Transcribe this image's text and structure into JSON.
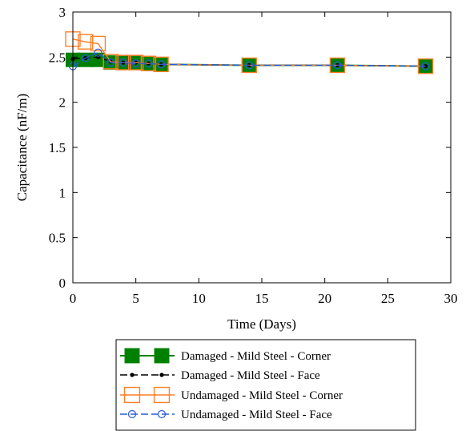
{
  "chart_data": {
    "type": "line",
    "xlabel": "Time (Days)",
    "ylabel": "Capacitance (nF/m)",
    "xlim": [
      0,
      30
    ],
    "ylim": [
      0,
      3
    ],
    "xticks": [
      "0",
      "5",
      "10",
      "15",
      "20",
      "25",
      "30"
    ],
    "yticks": [
      "0",
      "0.5",
      "1",
      "1.5",
      "2",
      "2.5",
      "3"
    ],
    "grid": false,
    "legend_position": "bottom",
    "series": [
      {
        "name": "Damaged - Mild Steel - Corner",
        "color": "#008000",
        "marker": "filled-square",
        "x": [
          0,
          1,
          2,
          3,
          4,
          5,
          6,
          7,
          14,
          21,
          28
        ],
        "y": [
          2.47,
          2.47,
          2.47,
          2.44,
          2.44,
          2.44,
          2.43,
          2.42,
          2.41,
          2.41,
          2.4
        ]
      },
      {
        "name": "Damaged - Mild Steel - Face",
        "color": "#000000",
        "marker": "dot",
        "x": [
          0,
          1,
          2,
          3,
          4,
          5,
          6,
          7,
          14,
          21,
          28
        ],
        "y": [
          2.48,
          2.49,
          2.5,
          2.45,
          2.44,
          2.44,
          2.43,
          2.42,
          2.41,
          2.41,
          2.4
        ]
      },
      {
        "name": "Undamaged - Mild Steel - Corner",
        "color": "#ff7f27",
        "marker": "open-square",
        "x": [
          0,
          1,
          2,
          3,
          4,
          5,
          6,
          7,
          14,
          21,
          28
        ],
        "y": [
          2.7,
          2.67,
          2.65,
          2.45,
          2.44,
          2.44,
          2.43,
          2.42,
          2.41,
          2.41,
          2.4
        ]
      },
      {
        "name": "Undamaged - Mild Steel - Face",
        "color": "#2a5bd7",
        "marker": "open-circle",
        "x": [
          0,
          1,
          2,
          3,
          4,
          5,
          6,
          7,
          14,
          21,
          28
        ],
        "y": [
          2.4,
          2.49,
          2.55,
          2.44,
          2.44,
          2.43,
          2.43,
          2.42,
          2.41,
          2.41,
          2.4
        ]
      }
    ]
  }
}
